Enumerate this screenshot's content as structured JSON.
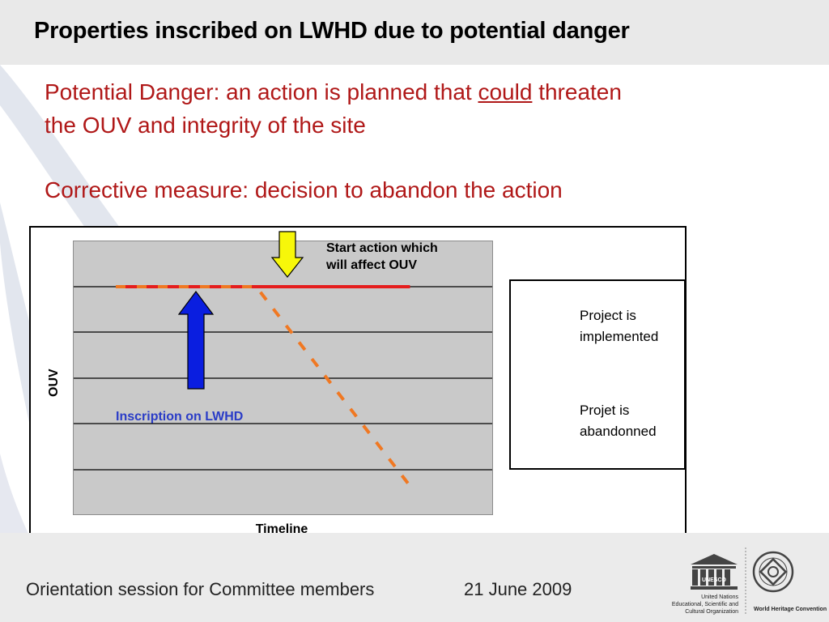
{
  "slide": {
    "title": "Properties inscribed on LWHD due to potential danger",
    "line1_pre": "Potential Danger: an action is planned that ",
    "line1_under": "could",
    "line1_post": " threaten",
    "line2": "the OUV and integrity of the site",
    "line3": "Corrective measure: decision to abandon the action"
  },
  "chart_data": {
    "type": "line",
    "xlabel": "Timeline",
    "ylabel": "OUV",
    "annotations": [
      "Start action which will affect OUV",
      "Inscription on LWHD"
    ],
    "series": [
      {
        "name": "Project is implemented",
        "style": "dashed",
        "color": "#f07822",
        "x": [
          0,
          0.42,
          0.88
        ],
        "y": [
          4,
          4,
          0.6
        ]
      },
      {
        "name": "Projet is abandonned",
        "style": "solid",
        "color": "#e51d1d",
        "x": [
          0,
          0.88
        ],
        "y": [
          4,
          4
        ]
      }
    ],
    "legend": "right",
    "grid": true,
    "ylim": [
      0,
      5
    ],
    "xlim": [
      0,
      1
    ]
  },
  "chart": {
    "start_action_line1": "Start action which",
    "start_action_line2": "will affect OUV",
    "inscription_label": "Inscription on LWHD",
    "legend_implemented_1": "Project is",
    "legend_implemented_2": "implemented",
    "legend_abandoned_1": "Projet is",
    "legend_abandoned_2": "abandonned",
    "colors": {
      "dashed": "#f07822",
      "solid": "#e51d1d",
      "arrow_up": "#0a1ee0",
      "arrow_down": "#f7f70a"
    }
  },
  "footer": {
    "session": "Orientation session for Committee members",
    "date": "21 June 2009",
    "unesco_line1": "United Nations",
    "unesco_line2": "Educational, Scientific and",
    "unesco_line3": "Cultural Organization",
    "unesco_logo_text": "UNESCO",
    "whc": "World Heritage Convention"
  }
}
